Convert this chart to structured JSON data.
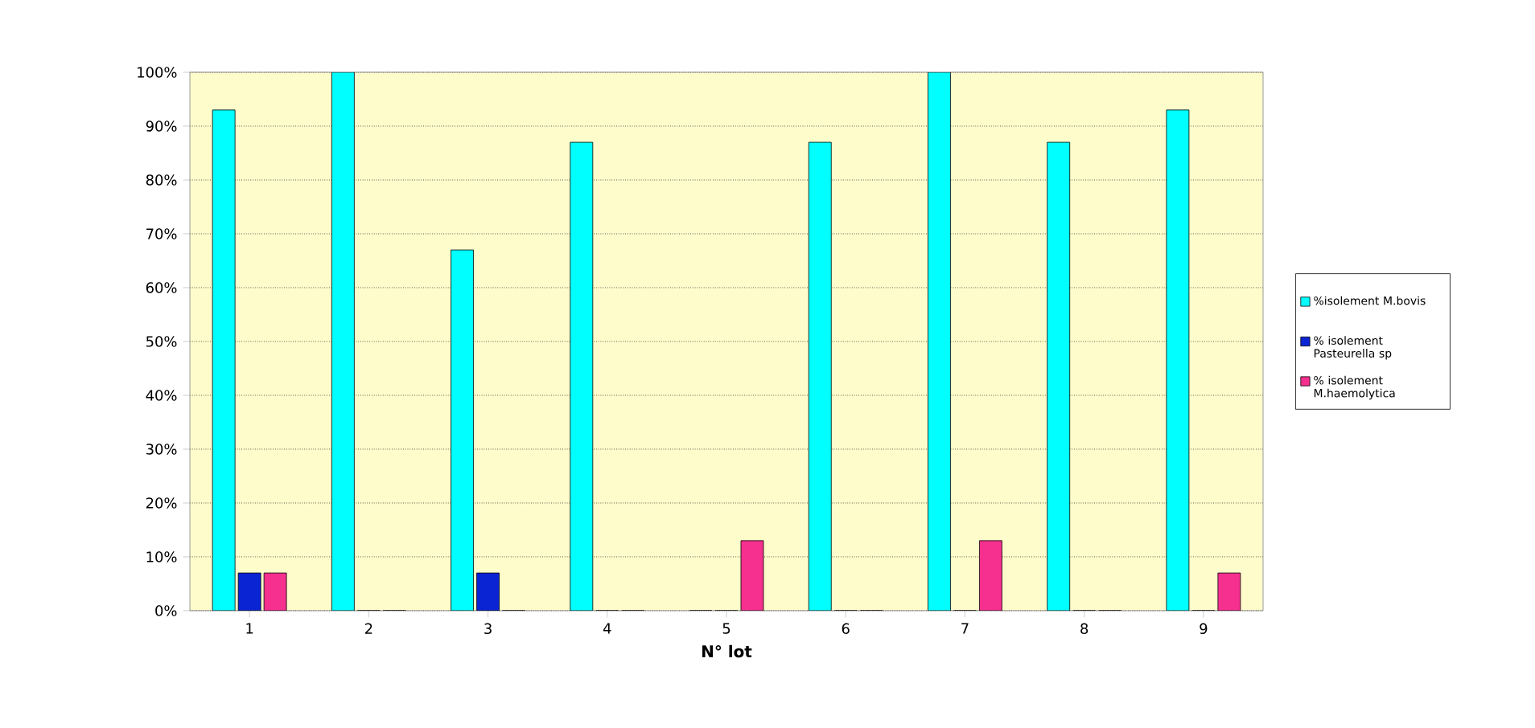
{
  "chart_data": {
    "type": "bar",
    "xlabel": "N° lot",
    "categories": [
      "1",
      "2",
      "3",
      "4",
      "5",
      "6",
      "7",
      "8",
      "9"
    ],
    "series": [
      {
        "name": "%isolement M.bovis",
        "color": "#00ffff",
        "values": [
          93,
          100,
          67,
          87,
          0,
          87,
          100,
          87,
          93
        ]
      },
      {
        "name": "% isolement Pasteurella sp",
        "color": "#0a24d4",
        "values": [
          7,
          0,
          7,
          0,
          0,
          0,
          0,
          0,
          0
        ]
      },
      {
        "name": "% isolement M.haemolytica",
        "color": "#f5308f",
        "values": [
          7,
          0,
          0,
          0,
          13,
          0,
          13,
          0,
          7
        ]
      }
    ],
    "ylim": [
      0,
      100
    ],
    "yticks": [
      {
        "value": 0,
        "label": "0%"
      },
      {
        "value": 10,
        "label": "10%"
      },
      {
        "value": 20,
        "label": "20%"
      },
      {
        "value": 30,
        "label": "30%"
      },
      {
        "value": 40,
        "label": "40%"
      },
      {
        "value": 50,
        "label": "50%"
      },
      {
        "value": 60,
        "label": "60%"
      },
      {
        "value": 70,
        "label": "70%"
      },
      {
        "value": 80,
        "label": "80%"
      },
      {
        "value": 90,
        "label": "90%"
      },
      {
        "value": 100,
        "label": "100%"
      }
    ],
    "grid": "y",
    "legend": "right"
  }
}
